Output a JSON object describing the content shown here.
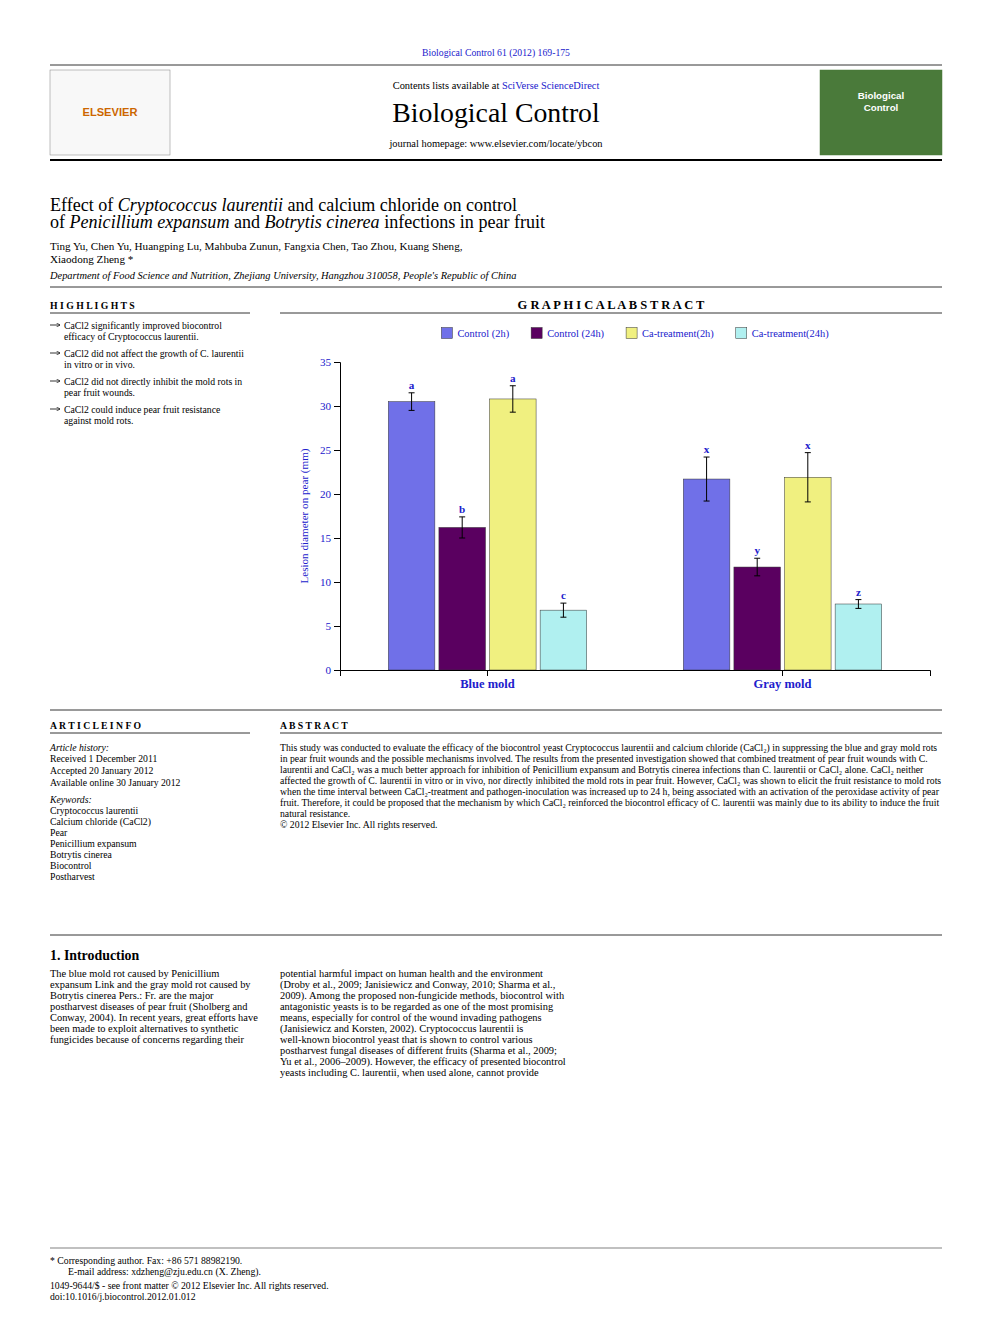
{
  "page": {
    "page_title": "Biological Control 61 (2012) 169-175",
    "journal_title": "Biological Control",
    "publisher": "ELSEVIER",
    "contents_prefix": "Contents lists available at ",
    "contents_link": "SciVerse ScienceDirect",
    "journal_homepage": "journal homepage: www.elsevier.com/locate/ybcon",
    "logo_lines": [
      "Biological",
      "Control"
    ],
    "title_lines": [
      [
        {
          "text": "Effect of ",
          "italic": false
        },
        {
          "text": "Cryptococcus laurentii",
          "italic": true
        },
        {
          "text": " and calcium chloride on control",
          "italic": false
        }
      ],
      [
        {
          "text": "of ",
          "italic": false
        },
        {
          "text": "Penicillium expansum",
          "italic": true
        },
        {
          "text": " and ",
          "italic": false
        },
        {
          "text": "Botrytis cinerea",
          "italic": true
        },
        {
          "text": " infections in pear fruit",
          "italic": false
        }
      ]
    ],
    "authors": "Ting Yu, Chen Yu, Huangping Lu, Mahbuba Zunun, Fangxia Chen, Tao Zhou, Kuang Sheng,",
    "authors2": "Xiaodong Zheng *",
    "affiliation": "Department of Food Science and Nutrition, Zhejiang University, Hangzhou 310058, People's Republic of China",
    "highlights_title": "H I G H L I G H T S",
    "highlights": [
      "CaCl2 significantly improved biocontrol efficacy of Cryptococcus laurentii.",
      "CaCl2 did not affect the growth of C. laurentii in vitro or in vivo.",
      "CaCl2 did not directly inhibit the mold rots in pear fruit wounds.",
      "CaCl2 could induce pear fruit resistance against mold rots."
    ],
    "graphical_abstract_title": "G R A P H I C A L   A B S T R A C T",
    "article_info_title": "A R T I C L E   I N F O",
    "article_history_title": "Article history:",
    "article_history": [
      "Received 1 December 2011",
      "Accepted 20 January 2012",
      "Available online 30 January 2012"
    ],
    "keywords_title": "Keywords:",
    "keywords": [
      "Cryptococcus laurentii",
      "Calcium chloride (CaCl2)",
      "Pear",
      "Penicillium expansum",
      "Botrytis cinerea",
      "Biocontrol",
      "Postharvest"
    ],
    "abstract_title": "A B S T R A C T",
    "abstract_text": "This study was conducted to evaluate the efficacy of the biocontrol yeast Cryptococcus laurentii and calcium chloride (CaCl₂) in suppressing the blue and gray mold rots in pear fruit wounds and the possible mechanisms involved. The results from the presented investigation showed that combined treatment of pear fruit wounds with C. laurentii and CaCl₂ was a much better approach for inhibition of Penicillium expansum and Botrytis cinerea infections than C. laurentii or CaCl₂ alone. CaCl₂ neither affected the growth of C. laurentii in vitro or in vivo, nor directly inhibited the mold rots in pear fruit. However, CaCl₂ was shown to elicit the fruit resistance to mold rots when the time interval between CaCl₂-treatment and pathogen-inoculation was increased up to 24 h, being associated with an activation of the peroxidase activity of pear fruit. Therefore, it could be proposed that the mechanism by which CaCl₂ reinforced the biocontrol efficacy of C. laurentii was mainly due to its ability to induce the fruit natural resistance.\n© 2012 Elsevier Inc. All rights reserved.",
    "intro_title": "1. Introduction",
    "intro_text": "The blue mold rot caused by Penicillium expansum Link and the gray mold rot caused by Botrytis cinerea Pers.: Fr. are the major postharvest diseases of pear fruit (Sholberg and Conway, 2004). In recent years, great efforts have been made to exploit alternatives to synthetic fungicides because of concerns regarding their",
    "intro_text2": "potential harmful impact on human health and the environment (Droby et al., 2009; Janisiewicz and Conway, 2010; Sharma et al., 2009). Among the proposed non-fungicide methods, biocontrol with antagonistic yeasts is to be regarded as one of the most promising means, especially for control of the wound invading pathogens (Janisiewicz and Korsten, 2002). Cryptococcus laurentii is well-known biocontrol yeast that is shown to control various postharvest fungal diseases of different fruits (Sharma et al., 2009; Yu et al., 2006–2009). However, the efficacy of presented biocontrol yeasts including C. laurentii, when used alone, cannot provide",
    "footer": [
      "* Corresponding author. Fax: +86 571 88982190.",
      "E-mail address: xdzheng@zju.edu.cn (X. Zheng).",
      "1049-9644/$ - see front matter © 2012 Elsevier Inc. All rights reserved.",
      "doi:10.1016/j.biocontrol.2012.01.012"
    ],
    "text_color": "#000000",
    "blue_color": "#2020cc",
    "publisher_color": "#cc6600",
    "logo_color": "#4a7a3a"
  },
  "chart_data": {
    "type": "bar",
    "ylabel": "Lesion diameter on pear (mm)",
    "categories": [
      "Blue mold",
      "Gray mold"
    ],
    "series": [
      {
        "name": "Control (2h)",
        "color": "#7070e8",
        "values": [
          30.5,
          21.7
        ],
        "errors": [
          1.0,
          2.5
        ],
        "significance_labels": [
          "a",
          "x"
        ]
      },
      {
        "name": "Control (24h)",
        "color": "#5a0060",
        "values": [
          16.2,
          11.7
        ],
        "errors": [
          1.2,
          1.0
        ],
        "significance_labels": [
          "b",
          "y"
        ]
      },
      {
        "name": "Ca-treatment(2h)",
        "color": "#f0f080",
        "values": [
          30.8,
          21.9
        ],
        "errors": [
          1.5,
          2.8
        ],
        "significance_labels": [
          "a",
          "x"
        ]
      },
      {
        "name": "Ca-treatment(24h)",
        "color": "#b0f0f0",
        "values": [
          6.8,
          7.5
        ],
        "errors": [
          0.8,
          0.5
        ],
        "significance_labels": [
          "c",
          "z"
        ]
      }
    ],
    "ylim": [
      0,
      35
    ],
    "yticks": [
      0,
      5,
      10,
      15,
      20,
      25,
      30,
      35
    ],
    "grid": false,
    "legend": "top"
  }
}
